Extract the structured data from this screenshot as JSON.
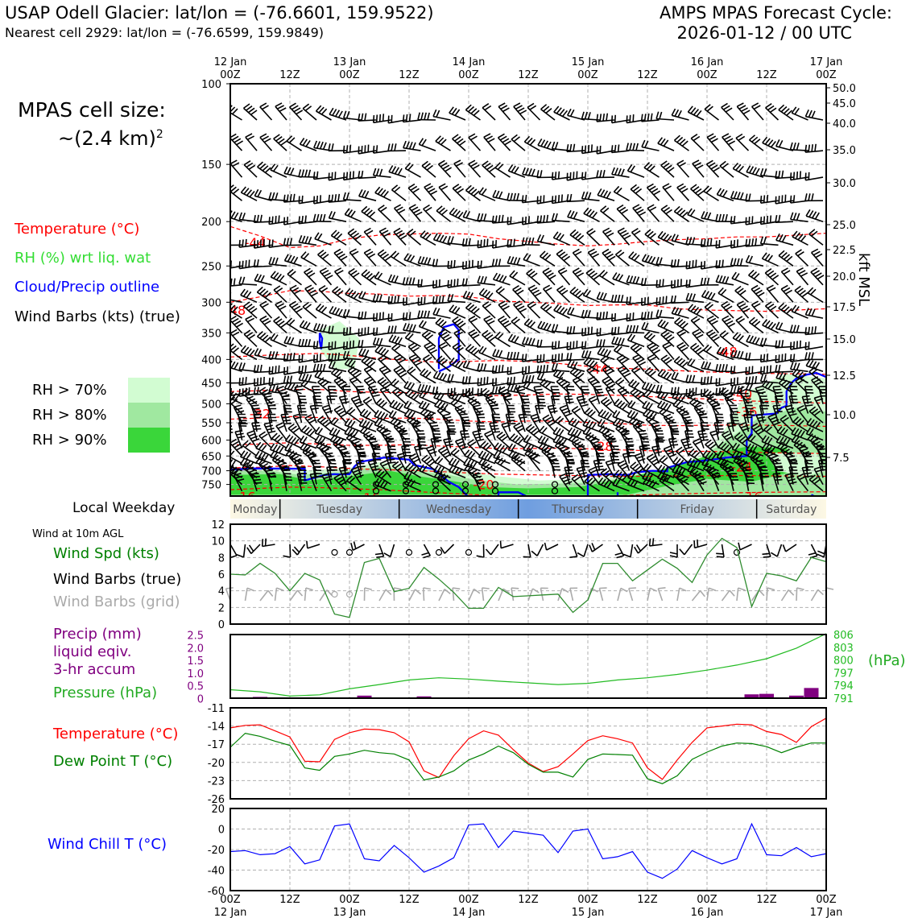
{
  "header": {
    "title_left": "USAP Odell Glacier: lat/lon = (-76.6601, 159.9522)",
    "subtitle_left": "Nearest cell 2929: lat/lon = (-76.6599, 159.9849)",
    "title_right_1": "AMPS MPAS Forecast Cycle:",
    "title_right_2": "2026-01-12 / 00 UTC"
  },
  "cell_size": {
    "line1": "MPAS cell size:",
    "line2": "~(2.4 km)",
    "sup": "2"
  },
  "legend": {
    "temperature": "Temperature (°C)",
    "rh": "RH (%) wrt liq. wat",
    "cloud": "Cloud/Precip outline",
    "wind": "Wind Barbs (kts) (true)",
    "rh70": "RH > 70%",
    "rh80": "RH > 80%",
    "rh90": "RH > 90%"
  },
  "colors": {
    "temp": "#ff0000",
    "rh70": "#d2fcd2",
    "rh80": "#a0e8a0",
    "rh90": "#3ad63a",
    "cloud": "#0000ff",
    "precip": "#800080",
    "pressure": "#22bb22",
    "dew": "#008000",
    "windchill": "#0000ff",
    "grid": "#b0b0b0"
  },
  "time_axis": {
    "top_dates": [
      "12 Jan",
      "13 Jan",
      "14 Jan",
      "15 Jan",
      "16 Jan",
      "17 Jan"
    ],
    "ticks": [
      "00Z",
      "12Z",
      "00Z",
      "12Z",
      "00Z",
      "12Z",
      "00Z",
      "12Z",
      "00Z",
      "12Z",
      "00Z"
    ],
    "bottom_dates": [
      "12 Jan",
      "13 Jan",
      "14 Jan",
      "15 Jan",
      "16 Jan",
      "17 Jan"
    ]
  },
  "weekday": {
    "label": "Local Weekday",
    "days": [
      "Monday",
      "Tuesday",
      "Wednesday",
      "Thursday",
      "Friday",
      "Saturday"
    ]
  },
  "sounding": {
    "pressure_ticks": [
      100,
      150,
      200,
      250,
      300,
      350,
      400,
      450,
      500,
      550,
      600,
      650,
      700,
      750
    ],
    "kft_ticks": [
      "50.0",
      "45.0",
      "40.0",
      "35.0",
      "30.0",
      "25.0",
      "22.5",
      "20.0",
      "17.5",
      "15.0",
      "12.5",
      "10.0",
      "7.5"
    ],
    "kft_label": "kft MSL",
    "temp_labels": [
      {
        "text": "-44",
        "t": 5,
        "p": 222
      },
      {
        "text": "-48",
        "t": 1,
        "p": 312
      },
      {
        "text": "-48",
        "t": 100,
        "p": 384
      },
      {
        "text": "-44",
        "t": 74,
        "p": 419
      },
      {
        "text": "-40",
        "t": 103,
        "p": 475
      },
      {
        "text": "-36",
        "t": 104,
        "p": 520
      },
      {
        "text": "-32",
        "t": 6,
        "p": 525
      },
      {
        "text": "-28",
        "t": 75,
        "p": 618
      },
      {
        "text": "-24",
        "t": 103,
        "p": 686
      },
      {
        "text": "-20",
        "t": 51,
        "p": 750
      },
      {
        "text": "-16",
        "t": 3,
        "p": 797
      },
      {
        "text": "-16",
        "t": 28,
        "p": 802
      },
      {
        "text": "-16",
        "t": 105,
        "p": 797
      }
    ]
  },
  "panels": {
    "wind": {
      "title": "Wind at 10m AGL",
      "label_speed": "Wind Spd (kts)",
      "label_barbs_true": "Wind Barbs (true)",
      "label_barbs_grid": "Wind Barbs (grid)",
      "yticks": [
        0,
        2,
        4,
        6,
        8,
        10,
        12
      ]
    },
    "precip": {
      "label1": "Precip (mm)",
      "label2": "liquid eqiv.",
      "label3": "3-hr accum",
      "label_pressure": "Pressure (hPa)",
      "unit": "(hPa)",
      "yticks_left": [
        "0",
        "0.5",
        "1.0",
        "1.5",
        "2.0",
        "2.5"
      ],
      "yticks_right": [
        "791",
        "794",
        "797",
        "800",
        "803",
        "806"
      ]
    },
    "temp": {
      "label_t": "Temperature (°C)",
      "label_td": "Dew Point T (°C)",
      "yticks": [
        -26,
        -23,
        -20,
        -17,
        -14,
        -11
      ]
    },
    "windchill": {
      "label": "Wind Chill T (°C)",
      "yticks": [
        -60,
        -40,
        -20,
        0,
        20
      ]
    }
  },
  "chart_data": [
    {
      "type": "line",
      "title": "Wind Spd (kts) at 10m AGL",
      "x_hours": [
        0,
        3,
        6,
        9,
        12,
        15,
        18,
        21,
        24,
        27,
        30,
        33,
        36,
        39,
        42,
        45,
        48,
        51,
        54,
        57,
        60,
        63,
        66,
        69,
        72,
        75,
        78,
        81,
        84,
        87,
        90,
        93,
        96,
        99,
        102,
        105,
        108,
        111,
        114,
        117,
        120
      ],
      "series": [
        {
          "name": "Wind Spd (kts)",
          "values": [
            6,
            5.9,
            7.3,
            6.1,
            4.0,
            6.1,
            5.3,
            1.2,
            0.8,
            7.4,
            7.9,
            3.9,
            4.3,
            6.8,
            5.4,
            3.8,
            1.9,
            1.9,
            4.4,
            3.3,
            3.4,
            3.5,
            3.6,
            1.4,
            2.9,
            7.3,
            7.3,
            5.2,
            6.5,
            7.8,
            6.7,
            5.0,
            8.3,
            10.3,
            9.2,
            2.1,
            6.1,
            5.8,
            5.2,
            8.0,
            7.5
          ]
        }
      ],
      "ylim": [
        0,
        12
      ]
    },
    {
      "type": "bar",
      "title": "Precip (mm) liquid eqiv. 3-hr accum",
      "x_hours": [
        6,
        27,
        39,
        102,
        105,
        108,
        111,
        114,
        117
      ],
      "values": [
        0.05,
        0.1,
        0.07,
        0.03,
        0.15,
        0.17,
        0.02,
        0.1,
        0.4
      ],
      "ylim": [
        0,
        2.5
      ]
    },
    {
      "type": "line",
      "title": "Pressure (hPa)",
      "x_hours": [
        0,
        6,
        12,
        18,
        24,
        30,
        36,
        42,
        48,
        54,
        60,
        66,
        72,
        78,
        84,
        90,
        96,
        102,
        108,
        114,
        120
      ],
      "series": [
        {
          "name": "Pressure (hPa)",
          "values": [
            793.0,
            792.5,
            791.5,
            791.8,
            793.2,
            794.2,
            795.3,
            795.8,
            795.5,
            795.0,
            794.6,
            794.2,
            794.5,
            795.3,
            795.8,
            796.6,
            797.6,
            798.8,
            800.3,
            802.8,
            806.2
          ]
        }
      ],
      "ylim": [
        791,
        806
      ]
    },
    {
      "type": "line",
      "title": "Temperature / Dew Point (°C)",
      "x_hours": [
        0,
        3,
        6,
        9,
        12,
        15,
        18,
        21,
        24,
        27,
        30,
        33,
        36,
        39,
        42,
        45,
        48,
        51,
        54,
        57,
        60,
        63,
        66,
        69,
        72,
        75,
        78,
        81,
        84,
        87,
        90,
        93,
        96,
        99,
        102,
        105,
        108,
        111,
        114,
        117,
        120
      ],
      "series": [
        {
          "name": "Temperature (°C)",
          "values": [
            -14.3,
            -13.9,
            -13.8,
            -14.8,
            -15.8,
            -19.8,
            -19.9,
            -16.2,
            -15.1,
            -14.5,
            -14.6,
            -15.1,
            -16.6,
            -21.4,
            -22.5,
            -18.9,
            -16.1,
            -14.8,
            -15.5,
            -17.9,
            -20.1,
            -21.5,
            -20.7,
            -18.6,
            -16.4,
            -15.6,
            -16.1,
            -16.8,
            -20.9,
            -22.8,
            -19.6,
            -16.7,
            -14.3,
            -14.0,
            -13.7,
            -13.8,
            -14.9,
            -15.4,
            -16.7,
            -14.1,
            -12.7
          ]
        },
        {
          "name": "Dew Point T (°C)",
          "values": [
            -17.5,
            -15.2,
            -15.7,
            -16.5,
            -17.2,
            -20.9,
            -21.3,
            -19.0,
            -18.6,
            -18.0,
            -18.4,
            -18.6,
            -19.6,
            -22.9,
            -22.4,
            -21.4,
            -19.6,
            -18.6,
            -17.3,
            -18.4,
            -20.3,
            -21.6,
            -21.6,
            -22.4,
            -19.5,
            -18.6,
            -18.7,
            -18.8,
            -22.7,
            -23.5,
            -22.2,
            -19.5,
            -18.3,
            -17.3,
            -16.8,
            -16.9,
            -17.4,
            -18.4,
            -17.5,
            -16.8,
            -16.8
          ]
        }
      ],
      "ylim": [
        -26,
        -11
      ]
    },
    {
      "type": "line",
      "title": "Wind Chill T (°C)",
      "x_hours": [
        0,
        3,
        6,
        9,
        12,
        15,
        18,
        21,
        24,
        27,
        30,
        33,
        36,
        39,
        42,
        45,
        48,
        51,
        54,
        57,
        60,
        63,
        66,
        69,
        72,
        75,
        78,
        81,
        84,
        87,
        90,
        93,
        96,
        99,
        102,
        105,
        108,
        111,
        114,
        117,
        120
      ],
      "series": [
        {
          "name": "Wind Chill T (°C)",
          "values": [
            -22,
            -21,
            -25,
            -24,
            -17,
            -34,
            -30,
            3,
            5,
            -29,
            -31,
            -16,
            -28,
            -42,
            -36,
            -28,
            4,
            5,
            -18,
            -2,
            -4,
            -6,
            -23,
            -2,
            0,
            -29,
            -27,
            -22,
            -42,
            -48,
            -39,
            -21,
            -28,
            -34,
            -29,
            5,
            -25,
            -26,
            -18,
            -27,
            -24
          ]
        }
      ],
      "ylim": [
        -60,
        20
      ]
    }
  ]
}
